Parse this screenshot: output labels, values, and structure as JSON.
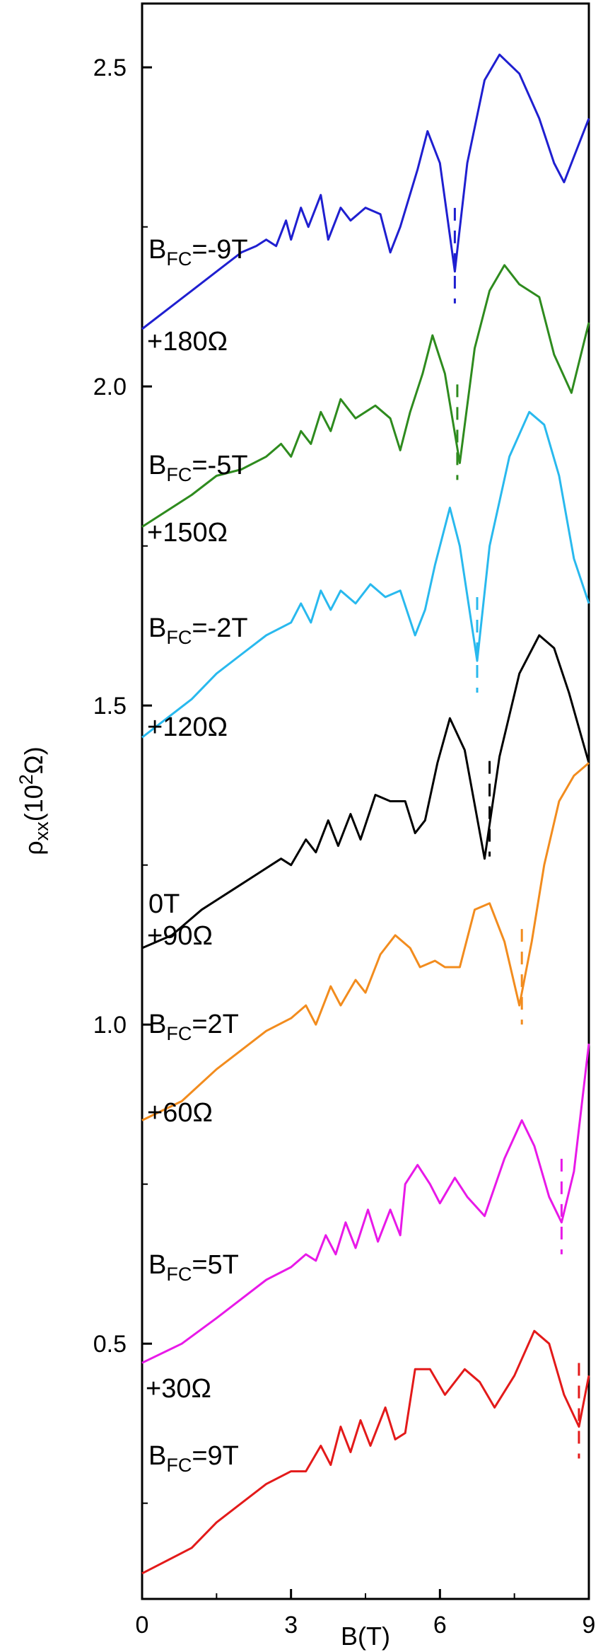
{
  "chart_data": {
    "type": "line",
    "xlabel": "B(T)",
    "ylabel": {
      "base": "ρ",
      "sub": "xx",
      "pre": "(10",
      "sup": "2",
      "post": "Ω)"
    },
    "xlim": [
      0,
      9
    ],
    "ylim": [
      0.1,
      2.6
    ],
    "xticks": [
      0,
      3,
      6,
      9
    ],
    "xticklabels": [
      "0",
      "3",
      "6",
      "9"
    ],
    "yticks": [
      0.5,
      1.0,
      1.5,
      2.0,
      2.5
    ],
    "yticklabels": [
      "0.5",
      "1.0",
      "1.5",
      "2.0",
      "2.5"
    ],
    "series": [
      {
        "color": "#1f1fd0",
        "label_parts": {
          "base": "B",
          "sub": "FC",
          "rest": "=-9T"
        },
        "offset_label": "+180Ω",
        "minimum_marker_x": 6.3,
        "points": [
          [
            0,
            2.09
          ],
          [
            1.0,
            2.15
          ],
          [
            1.5,
            2.18
          ],
          [
            2.0,
            2.21
          ],
          [
            2.3,
            2.22
          ],
          [
            2.5,
            2.23
          ],
          [
            2.7,
            2.22
          ],
          [
            2.9,
            2.26
          ],
          [
            3.0,
            2.23
          ],
          [
            3.2,
            2.28
          ],
          [
            3.35,
            2.25
          ],
          [
            3.6,
            2.3
          ],
          [
            3.75,
            2.23
          ],
          [
            4.0,
            2.28
          ],
          [
            4.2,
            2.26
          ],
          [
            4.5,
            2.28
          ],
          [
            4.8,
            2.27
          ],
          [
            5.0,
            2.21
          ],
          [
            5.2,
            2.25
          ],
          [
            5.55,
            2.34
          ],
          [
            5.75,
            2.4
          ],
          [
            6.0,
            2.35
          ],
          [
            6.3,
            2.18
          ],
          [
            6.55,
            2.35
          ],
          [
            6.9,
            2.48
          ],
          [
            7.2,
            2.52
          ],
          [
            7.6,
            2.49
          ],
          [
            8.0,
            2.42
          ],
          [
            8.3,
            2.35
          ],
          [
            8.5,
            2.32
          ],
          [
            8.7,
            2.36
          ],
          [
            9.0,
            2.42
          ]
        ]
      },
      {
        "color": "#2e8b1e",
        "label_parts": {
          "base": "B",
          "sub": "FC",
          "rest": "=-5T"
        },
        "offset_label": "+150Ω",
        "minimum_marker_x": 6.35,
        "points": [
          [
            0,
            1.78
          ],
          [
            1.0,
            1.83
          ],
          [
            1.5,
            1.86
          ],
          [
            2.0,
            1.87
          ],
          [
            2.5,
            1.89
          ],
          [
            2.8,
            1.91
          ],
          [
            3.0,
            1.89
          ],
          [
            3.2,
            1.93
          ],
          [
            3.4,
            1.91
          ],
          [
            3.6,
            1.96
          ],
          [
            3.8,
            1.93
          ],
          [
            4.0,
            1.98
          ],
          [
            4.3,
            1.95
          ],
          [
            4.7,
            1.97
          ],
          [
            5.0,
            1.95
          ],
          [
            5.2,
            1.9
          ],
          [
            5.4,
            1.96
          ],
          [
            5.65,
            2.02
          ],
          [
            5.85,
            2.08
          ],
          [
            6.1,
            2.02
          ],
          [
            6.4,
            1.88
          ],
          [
            6.7,
            2.06
          ],
          [
            7.0,
            2.15
          ],
          [
            7.3,
            2.19
          ],
          [
            7.6,
            2.16
          ],
          [
            8.0,
            2.14
          ],
          [
            8.3,
            2.05
          ],
          [
            8.65,
            1.99
          ],
          [
            9.0,
            2.1
          ]
        ]
      },
      {
        "color": "#29b9ee",
        "label_parts": {
          "base": "B",
          "sub": "FC",
          "rest": "=-2T"
        },
        "offset_label": "+120Ω",
        "minimum_marker_x": 6.75,
        "points": [
          [
            0,
            1.45
          ],
          [
            1.0,
            1.51
          ],
          [
            1.5,
            1.55
          ],
          [
            2.0,
            1.58
          ],
          [
            2.5,
            1.61
          ],
          [
            3.0,
            1.63
          ],
          [
            3.2,
            1.66
          ],
          [
            3.4,
            1.63
          ],
          [
            3.6,
            1.68
          ],
          [
            3.8,
            1.65
          ],
          [
            4.0,
            1.68
          ],
          [
            4.3,
            1.66
          ],
          [
            4.6,
            1.69
          ],
          [
            4.9,
            1.67
          ],
          [
            5.2,
            1.68
          ],
          [
            5.5,
            1.61
          ],
          [
            5.7,
            1.65
          ],
          [
            5.9,
            1.72
          ],
          [
            6.2,
            1.81
          ],
          [
            6.4,
            1.75
          ],
          [
            6.75,
            1.57
          ],
          [
            7.0,
            1.75
          ],
          [
            7.4,
            1.89
          ],
          [
            7.8,
            1.96
          ],
          [
            8.1,
            1.94
          ],
          [
            8.4,
            1.86
          ],
          [
            8.7,
            1.73
          ],
          [
            9.0,
            1.66
          ]
        ]
      },
      {
        "color": "#000000",
        "label_parts": {
          "base": "0T",
          "sub": "",
          "rest": ""
        },
        "offset_label": "+90Ω",
        "minimum_marker_x": 7.0,
        "points": [
          [
            0,
            1.12
          ],
          [
            0.6,
            1.14
          ],
          [
            1.2,
            1.18
          ],
          [
            1.8,
            1.21
          ],
          [
            2.4,
            1.24
          ],
          [
            2.8,
            1.26
          ],
          [
            3.0,
            1.25
          ],
          [
            3.3,
            1.29
          ],
          [
            3.5,
            1.27
          ],
          [
            3.75,
            1.32
          ],
          [
            3.95,
            1.28
          ],
          [
            4.2,
            1.33
          ],
          [
            4.4,
            1.29
          ],
          [
            4.7,
            1.36
          ],
          [
            5.0,
            1.35
          ],
          [
            5.3,
            1.35
          ],
          [
            5.5,
            1.3
          ],
          [
            5.7,
            1.32
          ],
          [
            5.95,
            1.41
          ],
          [
            6.2,
            1.48
          ],
          [
            6.5,
            1.43
          ],
          [
            6.9,
            1.26
          ],
          [
            7.2,
            1.42
          ],
          [
            7.6,
            1.55
          ],
          [
            8.0,
            1.61
          ],
          [
            8.3,
            1.59
          ],
          [
            8.6,
            1.52
          ],
          [
            9.0,
            1.41
          ]
        ]
      },
      {
        "color": "#f28c1e",
        "label_parts": {
          "base": "B",
          "sub": "FC",
          "rest": "=2T"
        },
        "offset_label": "+60Ω",
        "minimum_marker_x": 7.65,
        "points": [
          [
            0,
            0.85
          ],
          [
            0.8,
            0.88
          ],
          [
            1.5,
            0.93
          ],
          [
            2.0,
            0.96
          ],
          [
            2.5,
            0.99
          ],
          [
            3.0,
            1.01
          ],
          [
            3.3,
            1.03
          ],
          [
            3.5,
            1.0
          ],
          [
            3.8,
            1.06
          ],
          [
            4.0,
            1.03
          ],
          [
            4.3,
            1.07
          ],
          [
            4.5,
            1.05
          ],
          [
            4.8,
            1.11
          ],
          [
            5.1,
            1.14
          ],
          [
            5.4,
            1.12
          ],
          [
            5.6,
            1.09
          ],
          [
            5.9,
            1.1
          ],
          [
            6.1,
            1.09
          ],
          [
            6.4,
            1.09
          ],
          [
            6.7,
            1.18
          ],
          [
            7.0,
            1.19
          ],
          [
            7.3,
            1.13
          ],
          [
            7.6,
            1.03
          ],
          [
            7.85,
            1.13
          ],
          [
            8.1,
            1.25
          ],
          [
            8.4,
            1.35
          ],
          [
            8.7,
            1.39
          ],
          [
            9.0,
            1.41
          ]
        ]
      },
      {
        "color": "#e819e8",
        "label_parts": {
          "base": "B",
          "sub": "FC",
          "rest": "=5T"
        },
        "offset_label": "",
        "minimum_marker_x": 8.45,
        "points": [
          [
            0,
            0.47
          ],
          [
            0.8,
            0.5
          ],
          [
            1.5,
            0.54
          ],
          [
            2.0,
            0.57
          ],
          [
            2.5,
            0.6
          ],
          [
            3.0,
            0.62
          ],
          [
            3.3,
            0.64
          ],
          [
            3.5,
            0.63
          ],
          [
            3.7,
            0.67
          ],
          [
            3.9,
            0.64
          ],
          [
            4.1,
            0.69
          ],
          [
            4.3,
            0.65
          ],
          [
            4.55,
            0.71
          ],
          [
            4.75,
            0.66
          ],
          [
            5.0,
            0.71
          ],
          [
            5.2,
            0.67
          ],
          [
            5.3,
            0.75
          ],
          [
            5.55,
            0.78
          ],
          [
            5.8,
            0.75
          ],
          [
            6.0,
            0.72
          ],
          [
            6.3,
            0.76
          ],
          [
            6.55,
            0.73
          ],
          [
            6.9,
            0.7
          ],
          [
            7.3,
            0.79
          ],
          [
            7.65,
            0.85
          ],
          [
            7.9,
            0.81
          ],
          [
            8.2,
            0.73
          ],
          [
            8.45,
            0.69
          ],
          [
            8.7,
            0.77
          ],
          [
            9.0,
            0.97
          ]
        ]
      },
      {
        "color": "#e31a1a",
        "label_parts": {
          "base": "B",
          "sub": "FC",
          "rest": "=9T"
        },
        "offset_label": "",
        "minimum_marker_x": 8.8,
        "points": [
          [
            0,
            0.14
          ],
          [
            1.0,
            0.18
          ],
          [
            1.5,
            0.22
          ],
          [
            2.0,
            0.25
          ],
          [
            2.5,
            0.28
          ],
          [
            3.0,
            0.3
          ],
          [
            3.3,
            0.3
          ],
          [
            3.6,
            0.34
          ],
          [
            3.8,
            0.31
          ],
          [
            4.0,
            0.37
          ],
          [
            4.2,
            0.33
          ],
          [
            4.4,
            0.38
          ],
          [
            4.6,
            0.34
          ],
          [
            4.9,
            0.4
          ],
          [
            5.1,
            0.35
          ],
          [
            5.3,
            0.36
          ],
          [
            5.5,
            0.46
          ],
          [
            5.8,
            0.46
          ],
          [
            6.1,
            0.42
          ],
          [
            6.5,
            0.46
          ],
          [
            6.8,
            0.44
          ],
          [
            7.1,
            0.4
          ],
          [
            7.5,
            0.45
          ],
          [
            7.9,
            0.52
          ],
          [
            8.2,
            0.5
          ],
          [
            8.5,
            0.42
          ],
          [
            8.8,
            0.37
          ],
          [
            9.0,
            0.45
          ]
        ]
      }
    ],
    "extra_offset_labels": [
      "+30Ω"
    ]
  }
}
